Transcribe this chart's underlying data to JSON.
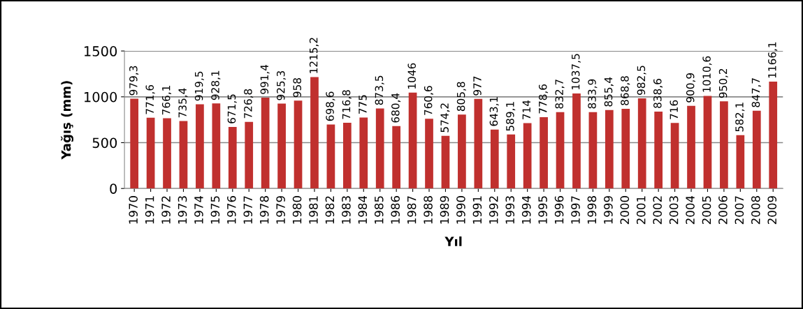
{
  "chart_data": {
    "type": "bar",
    "xlabel": "Yıl",
    "ylabel": "Yağış (mm)",
    "categories": [
      "1970",
      "1971",
      "1972",
      "1973",
      "1974",
      "1975",
      "1976",
      "1977",
      "1978",
      "1979",
      "1980",
      "1981",
      "1982",
      "1983",
      "1984",
      "1985",
      "1986",
      "1987",
      "1988",
      "1989",
      "1990",
      "1991",
      "1992",
      "1993",
      "1994",
      "1995",
      "1996",
      "1997",
      "1998",
      "1999",
      "2000",
      "2001",
      "2002",
      "2003",
      "2004",
      "2005",
      "2006",
      "2007",
      "2008",
      "2009"
    ],
    "values": [
      979.3,
      771.6,
      766.1,
      735.4,
      919.5,
      928.1,
      671.5,
      726.8,
      991.4,
      925.3,
      958,
      1215.2,
      698.6,
      716.8,
      775,
      873.5,
      680.4,
      1046,
      760.6,
      574.2,
      805.8,
      977,
      643.1,
      589.1,
      714,
      778.6,
      832.7,
      1037.5,
      833.9,
      855.4,
      868.8,
      982.5,
      838.6,
      716,
      900.9,
      1010.6,
      950.2,
      582.1,
      847.7,
      1166.1
    ],
    "value_labels": [
      "979,3",
      "771,6",
      "766,1",
      "735,4",
      "919,5",
      "928,1",
      "671,5",
      "726,8",
      "991,4",
      "925,3",
      "958",
      "1215,2",
      "698,6",
      "716,8",
      "775",
      "873,5",
      "680,4",
      "1046",
      "760,6",
      "574,2",
      "805,8",
      "977",
      "643,1",
      "589,1",
      "714",
      "778,6",
      "832,7",
      "1037,5",
      "833,9",
      "855,4",
      "868,8",
      "982,5",
      "838,6",
      "716",
      "900,9",
      "1010,6",
      "950,2",
      "582,1",
      "847,7",
      "1166,1"
    ],
    "color": "#c0302e",
    "ylim": [
      0,
      1500
    ],
    "yticks": [
      0,
      500,
      1000,
      1500
    ],
    "grid": "y",
    "legend": false
  }
}
